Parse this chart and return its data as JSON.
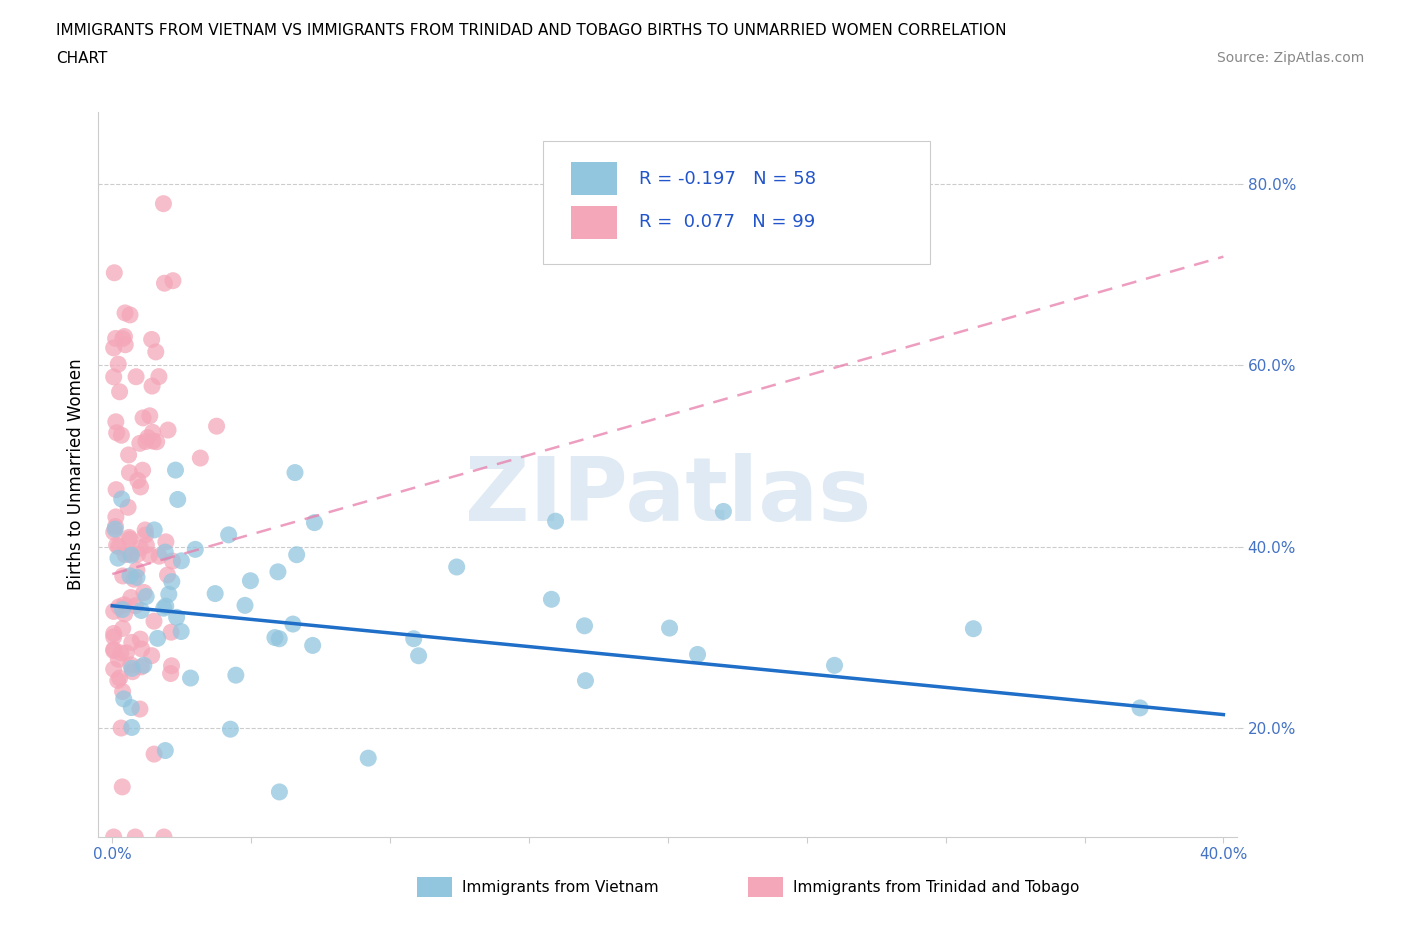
{
  "title_line1": "IMMIGRANTS FROM VIETNAM VS IMMIGRANTS FROM TRINIDAD AND TOBAGO BIRTHS TO UNMARRIED WOMEN CORRELATION",
  "title_line2": "CHART",
  "source": "Source: ZipAtlas.com",
  "ylabel": "Births to Unmarried Women",
  "xlabel_vietnam": "Immigrants from Vietnam",
  "xlabel_trinidad": "Immigrants from Trinidad and Tobago",
  "legend_vietnam_R": -0.197,
  "legend_vietnam_N": 58,
  "legend_trinidad_R": 0.077,
  "legend_trinidad_N": 99,
  "xlim": [
    -0.005,
    0.405
  ],
  "ylim": [
    0.08,
    0.88
  ],
  "yticks": [
    0.2,
    0.4,
    0.6,
    0.8
  ],
  "xticks": [
    0.0,
    0.05,
    0.1,
    0.15,
    0.2,
    0.25,
    0.3,
    0.35,
    0.4
  ],
  "color_vietnam": "#92C5DE",
  "color_trinidad": "#F4A7B9",
  "trendline_vietnam_color": "#1F6EC8",
  "trendline_trinidad_color": "#E87EAB",
  "vietnam_trend_x": [
    0.0,
    0.4
  ],
  "vietnam_trend_y": [
    0.335,
    0.215
  ],
  "trinidad_trend_x": [
    0.0,
    0.4
  ],
  "trinidad_trend_y": [
    0.37,
    0.72
  ],
  "watermark_text": "ZIPatlas",
  "watermark_color": "#CDDDEE",
  "background_color": "#FFFFFF"
}
